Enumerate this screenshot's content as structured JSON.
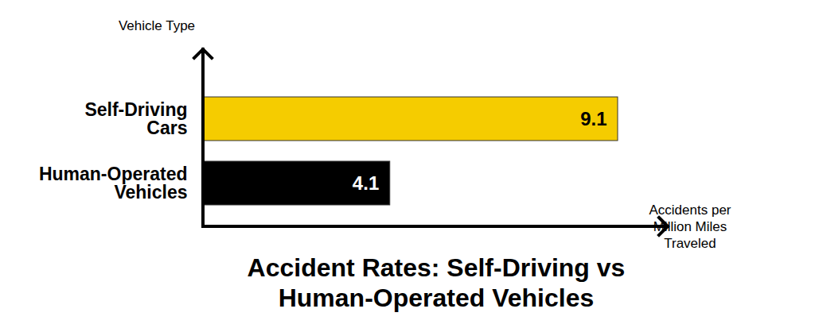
{
  "chart_data": {
    "type": "bar",
    "title": "Accident Rates: Self-Driving vs Human-Operated Vehicles",
    "categories": [
      "Self-Driving Cars",
      "Human-Operated Vehicles"
    ],
    "values": [
      9.1,
      4.1
    ],
    "colors": [
      "#f5cc00",
      "#000000"
    ],
    "orientation": "horizontal",
    "xlabel": "Accidents per Million Miles Traveled",
    "ylabel": "Vehicle Type",
    "xlim": [
      0,
      10.2
    ],
    "xticks": [],
    "tick_labels": "y",
    "data_labels": true
  }
}
